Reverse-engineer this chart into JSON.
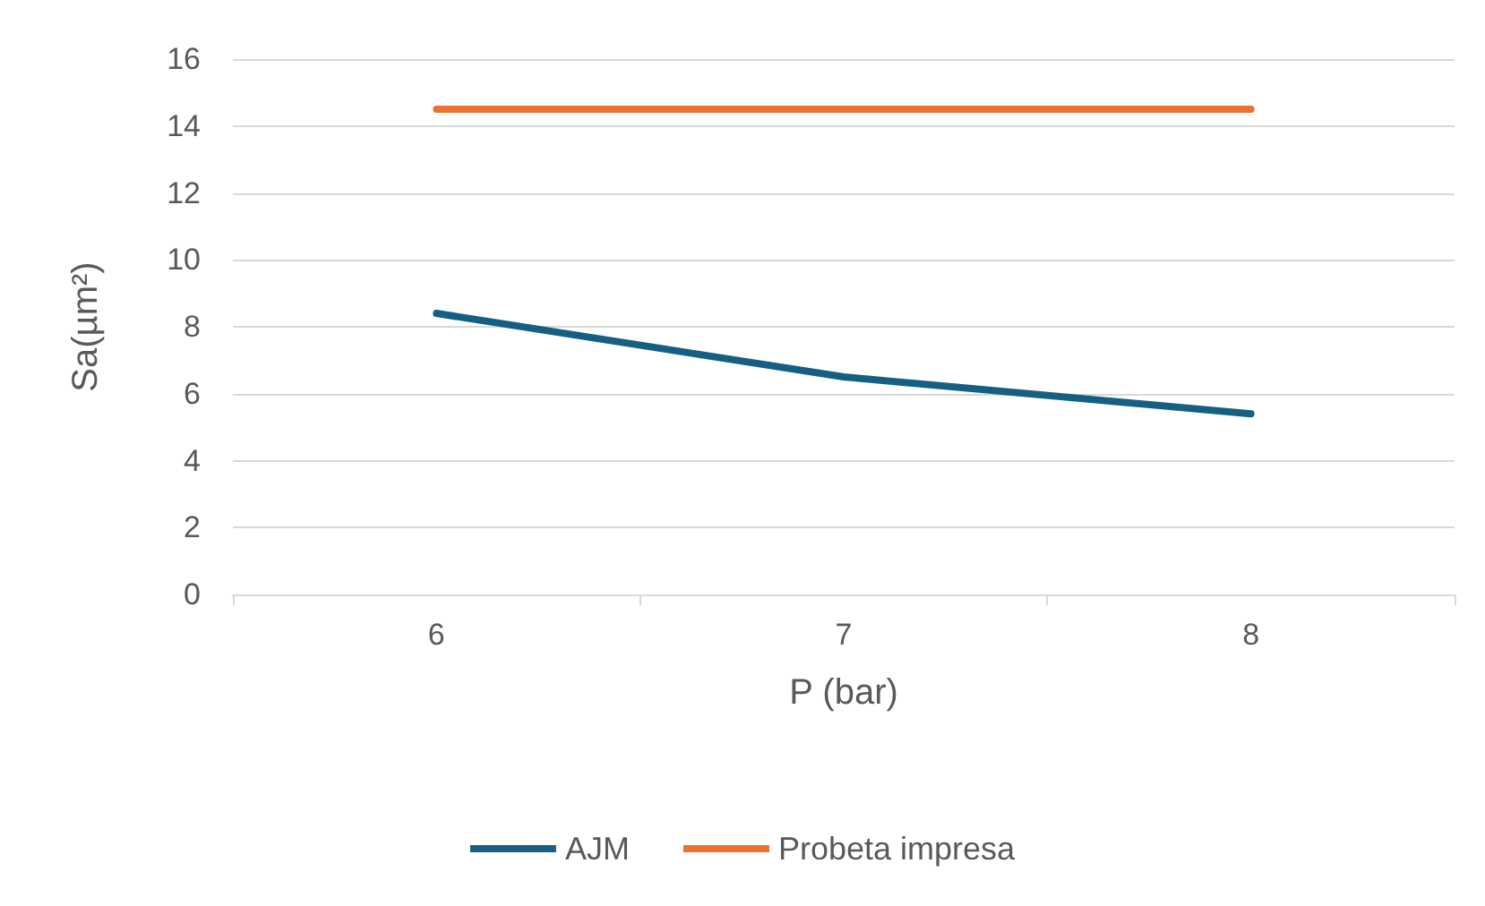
{
  "chart_data": {
    "type": "line",
    "xlabel": "P (bar)",
    "ylabel": "Sa(µm²)",
    "categories": [
      "6",
      "7",
      "8"
    ],
    "series": [
      {
        "name": "AJM",
        "color": "#156082",
        "values": [
          8.4,
          6.5,
          5.4
        ]
      },
      {
        "name": "Probeta impresa",
        "color": "#e97132",
        "values": [
          14.5,
          14.5,
          14.5
        ]
      }
    ],
    "ylim": [
      0,
      16
    ],
    "yticks": [
      0,
      2,
      4,
      6,
      8,
      10,
      12,
      14,
      16
    ],
    "grid": "y",
    "legend": "bottom",
    "marker": "none",
    "line_style": "solid"
  }
}
